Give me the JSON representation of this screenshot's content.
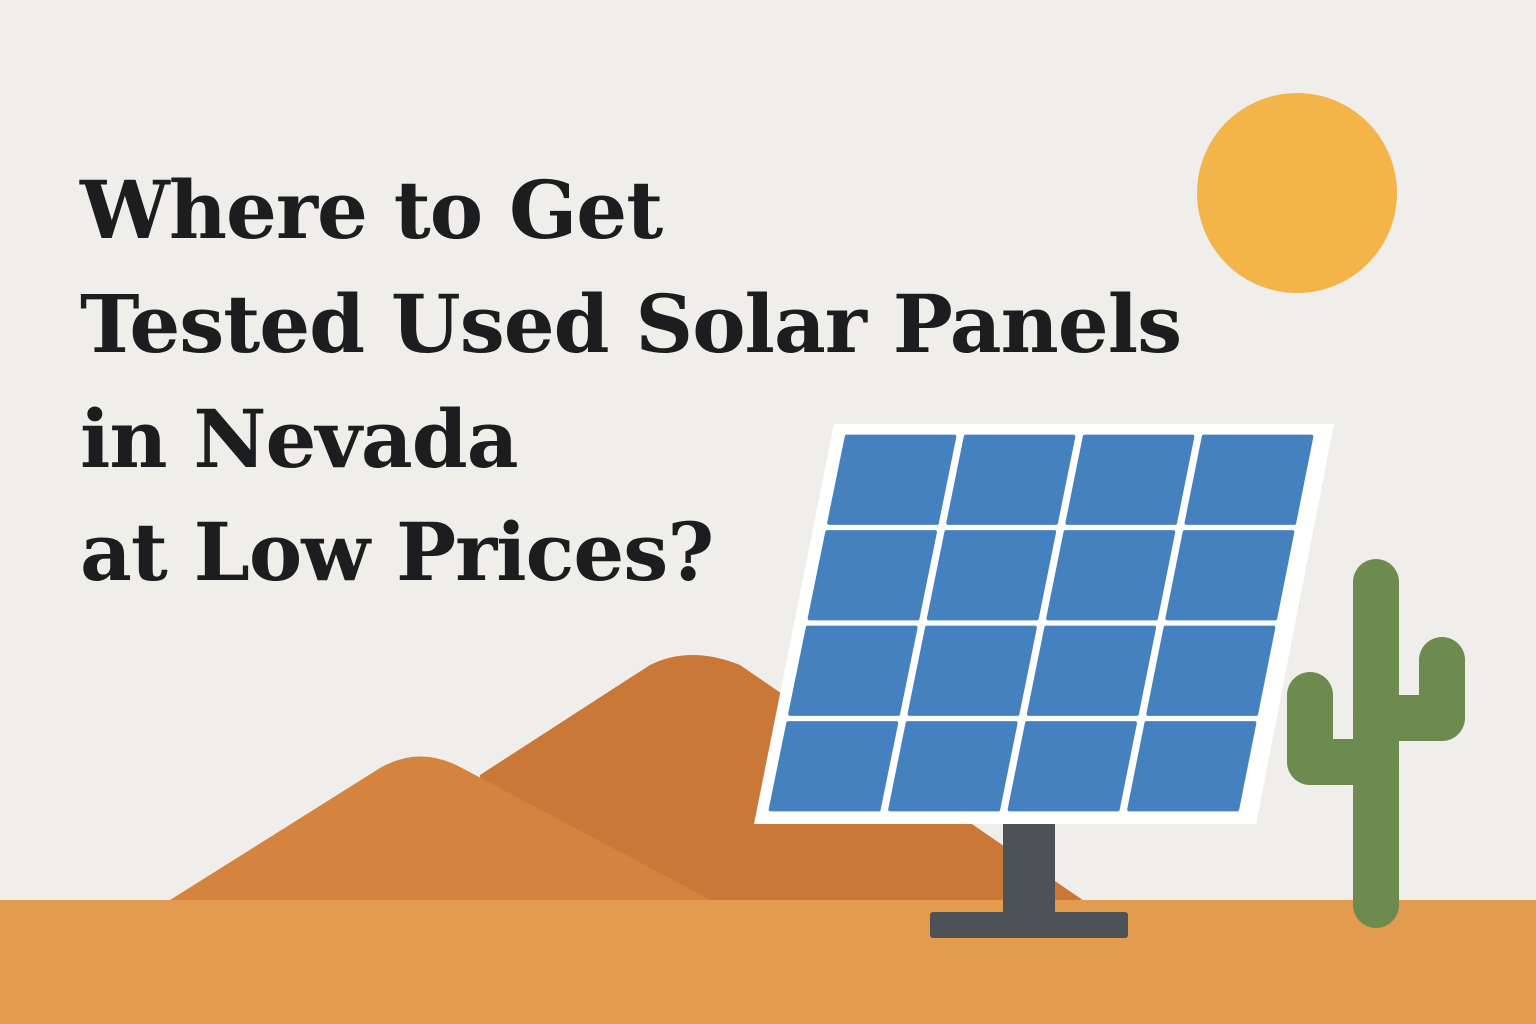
{
  "title": {
    "lines": [
      "Where to Get",
      "Tested Used Solar Panels",
      "in Nevada",
      "at Low Prices?"
    ]
  }
}
